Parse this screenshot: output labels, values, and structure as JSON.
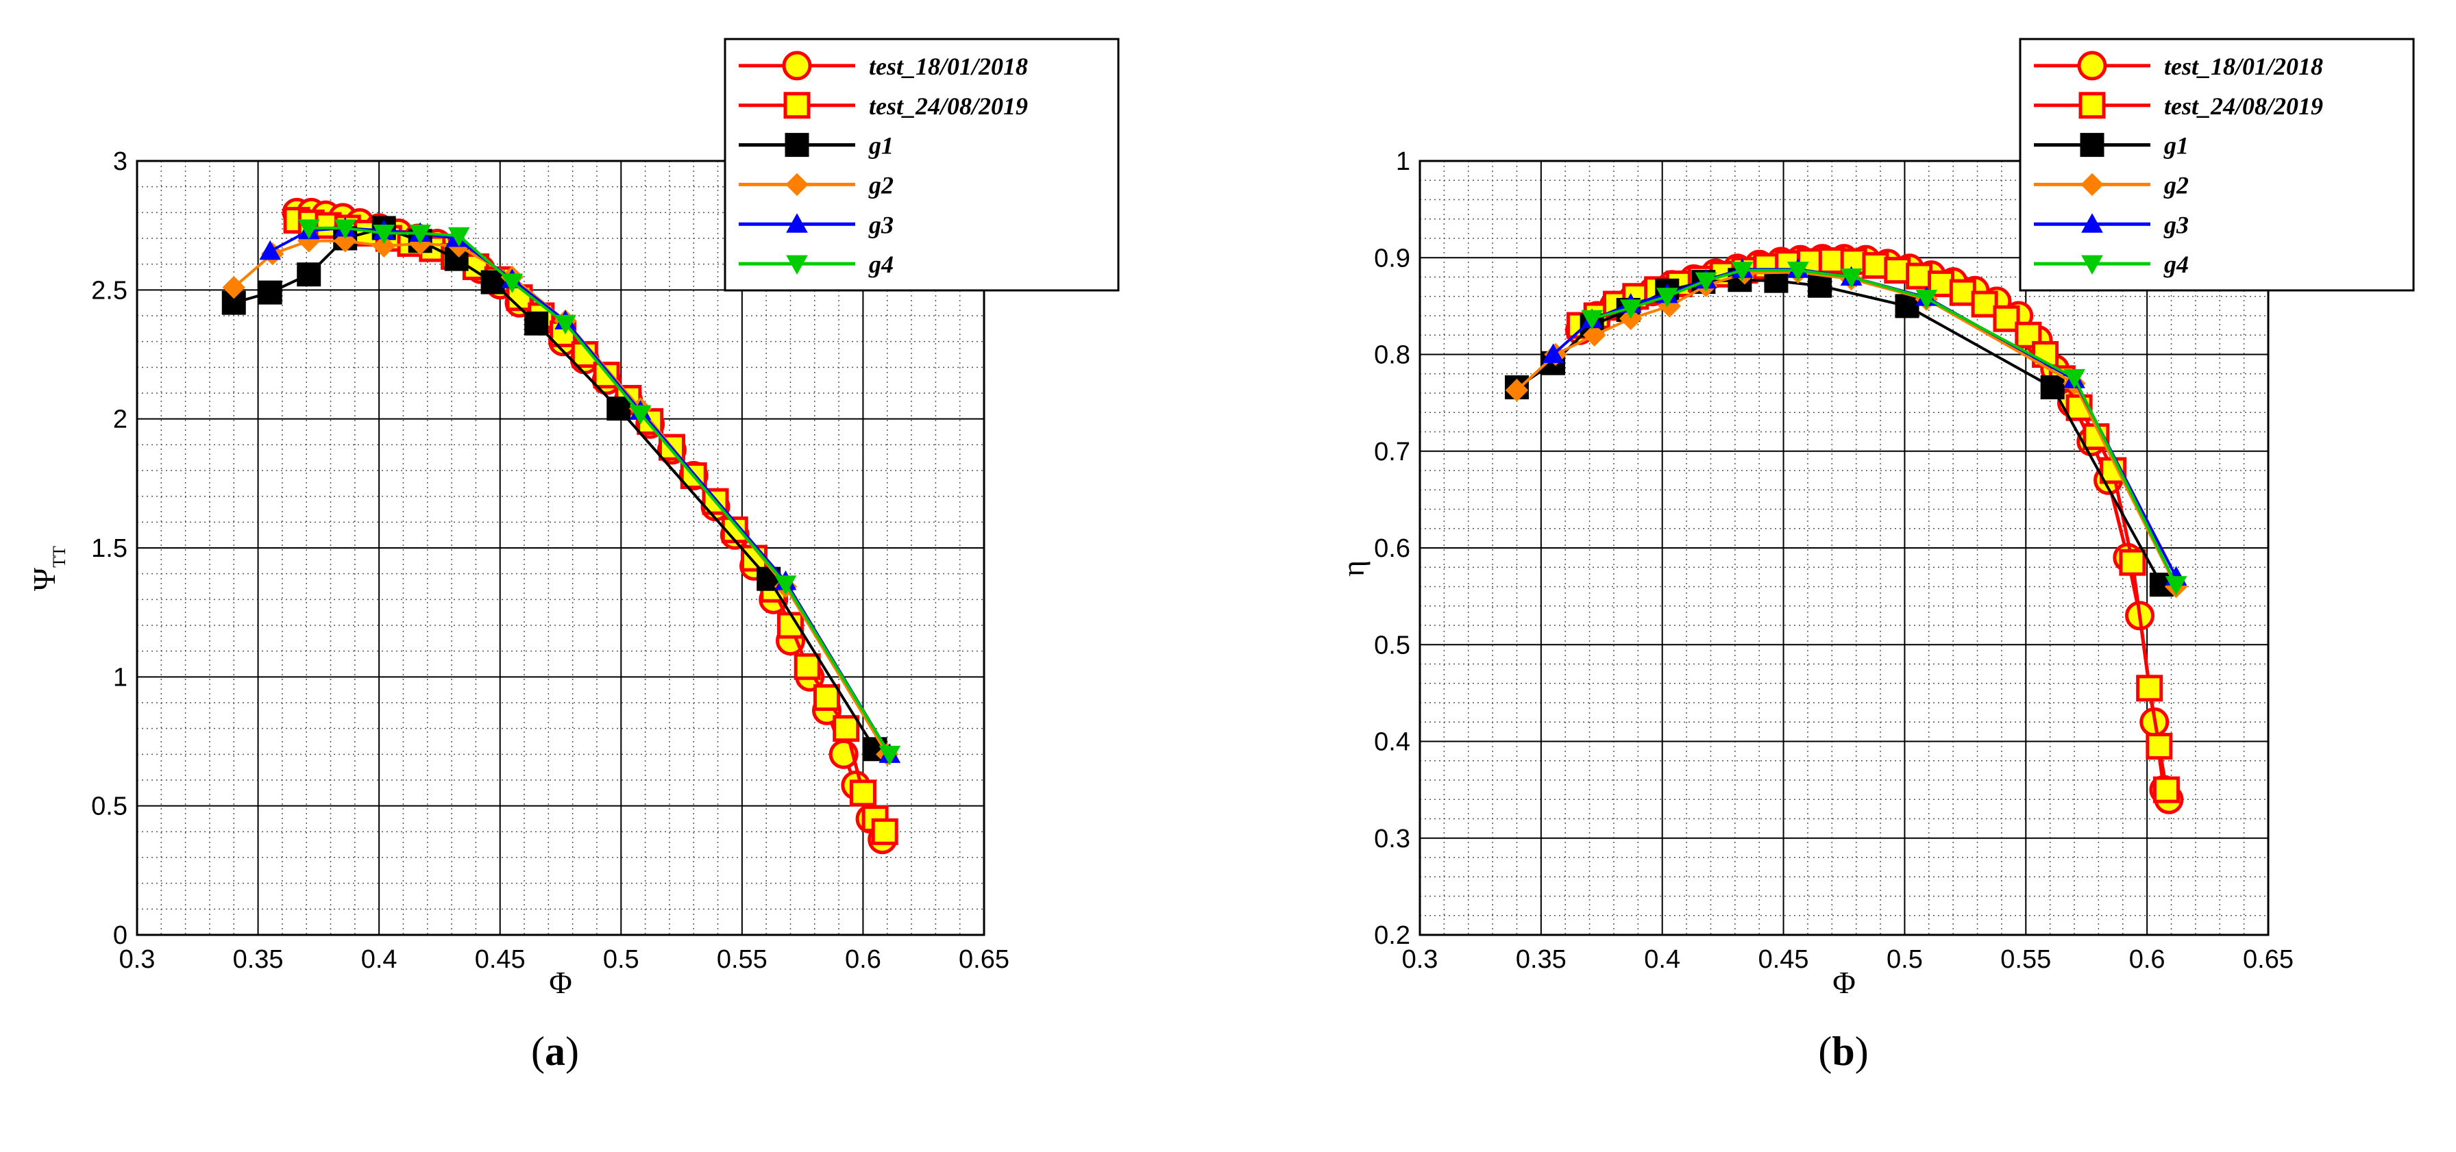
{
  "chart_data": [
    {
      "type": "line",
      "panel": "a",
      "caption": "a",
      "xlabel": "Φ",
      "ylabel": "Ψ",
      "ylabel_sub": "TT",
      "xlim": [
        0.3,
        0.65
      ],
      "ylim": [
        0,
        3
      ],
      "xticks": [
        0.3,
        0.35,
        0.4,
        0.45,
        0.5,
        0.55,
        0.6,
        0.65
      ],
      "xtick_labels": [
        "0.3",
        "0.35",
        "0.4",
        "0.45",
        "0.5",
        "0.55",
        "0.6",
        "0.65"
      ],
      "yticks": [
        0,
        0.5,
        1,
        1.5,
        2,
        2.5,
        3
      ],
      "ytick_labels": [
        "0",
        "0.5",
        "1",
        "1.5",
        "2",
        "2.5",
        "3"
      ],
      "grid": true,
      "legend_position": "top-right",
      "series": [
        {
          "name": "test_18/01/2018",
          "color": "#ff0000",
          "marker": "circle",
          "marker_fill": "#ffff00",
          "x": [
            0.366,
            0.372,
            0.378,
            0.385,
            0.392,
            0.4,
            0.408,
            0.416,
            0.424,
            0.433,
            0.442,
            0.45,
            0.458,
            0.467,
            0.476,
            0.485,
            0.494,
            0.503,
            0.512,
            0.521,
            0.53,
            0.539,
            0.547,
            0.555,
            0.563,
            0.57,
            0.578,
            0.585,
            0.592,
            0.597,
            0.603,
            0.608
          ],
          "y": [
            2.8,
            2.8,
            2.79,
            2.78,
            2.76,
            2.74,
            2.72,
            2.7,
            2.68,
            2.64,
            2.58,
            2.52,
            2.45,
            2.38,
            2.3,
            2.23,
            2.15,
            2.07,
            1.98,
            1.88,
            1.78,
            1.66,
            1.55,
            1.43,
            1.3,
            1.14,
            1.0,
            0.87,
            0.7,
            0.58,
            0.45,
            0.37
          ]
        },
        {
          "name": "test_24/08/2019",
          "color": "#ff0000",
          "marker": "square",
          "marker_fill": "#ffff00",
          "x": [
            0.366,
            0.372,
            0.379,
            0.387,
            0.395,
            0.404,
            0.413,
            0.422,
            0.431,
            0.44,
            0.449,
            0.458,
            0.467,
            0.476,
            0.485,
            0.494,
            0.503,
            0.512,
            0.521,
            0.53,
            0.539,
            0.547,
            0.555,
            0.563,
            0.57,
            0.577,
            0.585,
            0.593,
            0.6,
            0.605,
            0.609
          ],
          "y": [
            2.77,
            2.76,
            2.75,
            2.74,
            2.72,
            2.7,
            2.68,
            2.66,
            2.63,
            2.59,
            2.54,
            2.47,
            2.4,
            2.33,
            2.25,
            2.17,
            2.08,
            1.99,
            1.89,
            1.78,
            1.68,
            1.57,
            1.46,
            1.34,
            1.2,
            1.04,
            0.92,
            0.8,
            0.55,
            0.45,
            0.4
          ]
        },
        {
          "name": "g1",
          "color": "#000000",
          "marker": "square",
          "marker_fill": "#000000",
          "x": [
            0.34,
            0.355,
            0.371,
            0.386,
            0.402,
            0.417,
            0.432,
            0.447,
            0.465,
            0.499,
            0.561,
            0.605
          ],
          "y": [
            2.45,
            2.49,
            2.56,
            2.7,
            2.74,
            2.69,
            2.62,
            2.53,
            2.37,
            2.04,
            1.38,
            0.72
          ]
        },
        {
          "name": "g2",
          "color": "#ff7f00",
          "marker": "diamond",
          "marker_fill": "#ff7f00",
          "x": [
            0.34,
            0.356,
            0.371,
            0.386,
            0.402,
            0.417,
            0.433,
            0.455,
            0.477,
            0.508,
            0.568,
            0.61
          ],
          "y": [
            2.51,
            2.64,
            2.69,
            2.69,
            2.67,
            2.68,
            2.67,
            2.55,
            2.38,
            2.04,
            1.35,
            0.7
          ]
        },
        {
          "name": "g3",
          "color": "#0000ff",
          "marker": "triangle-up",
          "marker_fill": "#0000ff",
          "x": [
            0.355,
            0.371,
            0.386,
            0.402,
            0.417,
            0.432,
            0.455,
            0.477,
            0.508,
            0.568,
            0.611
          ],
          "y": [
            2.65,
            2.73,
            2.74,
            2.73,
            2.72,
            2.7,
            2.54,
            2.38,
            2.03,
            1.37,
            0.7
          ]
        },
        {
          "name": "g4",
          "color": "#00cc00",
          "marker": "triangle-down",
          "marker_fill": "#00cc00",
          "x": [
            0.371,
            0.386,
            0.402,
            0.417,
            0.433,
            0.455,
            0.477,
            0.508,
            0.568,
            0.611
          ],
          "y": [
            2.74,
            2.74,
            2.72,
            2.72,
            2.71,
            2.53,
            2.37,
            2.02,
            1.36,
            0.7
          ]
        }
      ]
    },
    {
      "type": "line",
      "panel": "b",
      "caption": "b",
      "xlabel": "Φ",
      "ylabel": "η",
      "xlim": [
        0.3,
        0.65
      ],
      "ylim": [
        0.2,
        1
      ],
      "xticks": [
        0.3,
        0.35,
        0.4,
        0.45,
        0.5,
        0.55,
        0.6,
        0.65
      ],
      "xtick_labels": [
        "0.3",
        "0.35",
        "0.4",
        "0.45",
        "0.5",
        "0.55",
        "0.6",
        "0.65"
      ],
      "yticks": [
        0.2,
        0.3,
        0.4,
        0.5,
        0.6,
        0.7,
        0.8,
        0.9,
        1
      ],
      "ytick_labels": [
        "0.2",
        "0.3",
        "0.4",
        "0.5",
        "0.6",
        "0.7",
        "0.8",
        "0.9",
        "1"
      ],
      "grid": true,
      "legend_position": "top-right",
      "series": [
        {
          "name": "test_18/01/2018",
          "color": "#ff0000",
          "marker": "circle",
          "marker_fill": "#ffff00",
          "x": [
            0.366,
            0.373,
            0.38,
            0.388,
            0.396,
            0.404,
            0.413,
            0.422,
            0.431,
            0.44,
            0.449,
            0.457,
            0.466,
            0.475,
            0.484,
            0.493,
            0.502,
            0.511,
            0.52,
            0.529,
            0.538,
            0.547,
            0.555,
            0.562,
            0.569,
            0.577,
            0.584,
            0.592,
            0.597,
            0.603,
            0.607,
            0.609
          ],
          "y": [
            0.825,
            0.84,
            0.85,
            0.858,
            0.865,
            0.872,
            0.878,
            0.884,
            0.889,
            0.893,
            0.896,
            0.898,
            0.899,
            0.899,
            0.898,
            0.894,
            0.889,
            0.882,
            0.875,
            0.866,
            0.855,
            0.84,
            0.815,
            0.785,
            0.75,
            0.71,
            0.67,
            0.59,
            0.53,
            0.42,
            0.35,
            0.34
          ]
        },
        {
          "name": "test_24/08/2019",
          "color": "#ff0000",
          "marker": "square",
          "marker_fill": "#ffff00",
          "x": [
            0.366,
            0.373,
            0.381,
            0.389,
            0.398,
            0.407,
            0.416,
            0.425,
            0.434,
            0.443,
            0.452,
            0.461,
            0.47,
            0.479,
            0.488,
            0.497,
            0.506,
            0.515,
            0.524,
            0.533,
            0.542,
            0.551,
            0.558,
            0.565,
            0.572,
            0.579,
            0.586,
            0.594,
            0.601,
            0.605,
            0.608
          ],
          "y": [
            0.83,
            0.84,
            0.852,
            0.86,
            0.867,
            0.873,
            0.878,
            0.883,
            0.887,
            0.891,
            0.894,
            0.896,
            0.897,
            0.896,
            0.892,
            0.887,
            0.881,
            0.873,
            0.864,
            0.852,
            0.837,
            0.82,
            0.8,
            0.775,
            0.745,
            0.715,
            0.68,
            0.585,
            0.455,
            0.395,
            0.35
          ]
        },
        {
          "name": "g1",
          "color": "#000000",
          "marker": "square",
          "marker_fill": "#000000",
          "x": [
            0.34,
            0.355,
            0.371,
            0.386,
            0.402,
            0.417,
            0.432,
            0.447,
            0.465,
            0.501,
            0.561,
            0.606
          ],
          "y": [
            0.766,
            0.791,
            0.83,
            0.846,
            0.866,
            0.875,
            0.877,
            0.876,
            0.871,
            0.85,
            0.766,
            0.562
          ]
        },
        {
          "name": "g2",
          "color": "#ff7f00",
          "marker": "diamond",
          "marker_fill": "#ff7f00",
          "x": [
            0.34,
            0.356,
            0.372,
            0.387,
            0.403,
            0.418,
            0.434,
            0.456,
            0.478,
            0.509,
            0.57,
            0.612
          ],
          "y": [
            0.763,
            0.8,
            0.82,
            0.837,
            0.85,
            0.871,
            0.884,
            0.885,
            0.878,
            0.857,
            0.77,
            0.56
          ]
        },
        {
          "name": "g3",
          "color": "#0000ff",
          "marker": "triangle-up",
          "marker_fill": "#0000ff",
          "x": [
            0.355,
            0.371,
            0.387,
            0.402,
            0.418,
            0.433,
            0.456,
            0.478,
            0.509,
            0.57,
            0.612
          ],
          "y": [
            0.8,
            0.836,
            0.852,
            0.862,
            0.877,
            0.888,
            0.888,
            0.88,
            0.859,
            0.774,
            0.57
          ]
        },
        {
          "name": "g4",
          "color": "#00cc00",
          "marker": "triangle-down",
          "marker_fill": "#00cc00",
          "x": [
            0.371,
            0.387,
            0.402,
            0.418,
            0.433,
            0.456,
            0.478,
            0.509,
            0.57,
            0.612
          ],
          "y": [
            0.837,
            0.848,
            0.86,
            0.876,
            0.887,
            0.887,
            0.88,
            0.858,
            0.776,
            0.562
          ]
        }
      ]
    }
  ]
}
